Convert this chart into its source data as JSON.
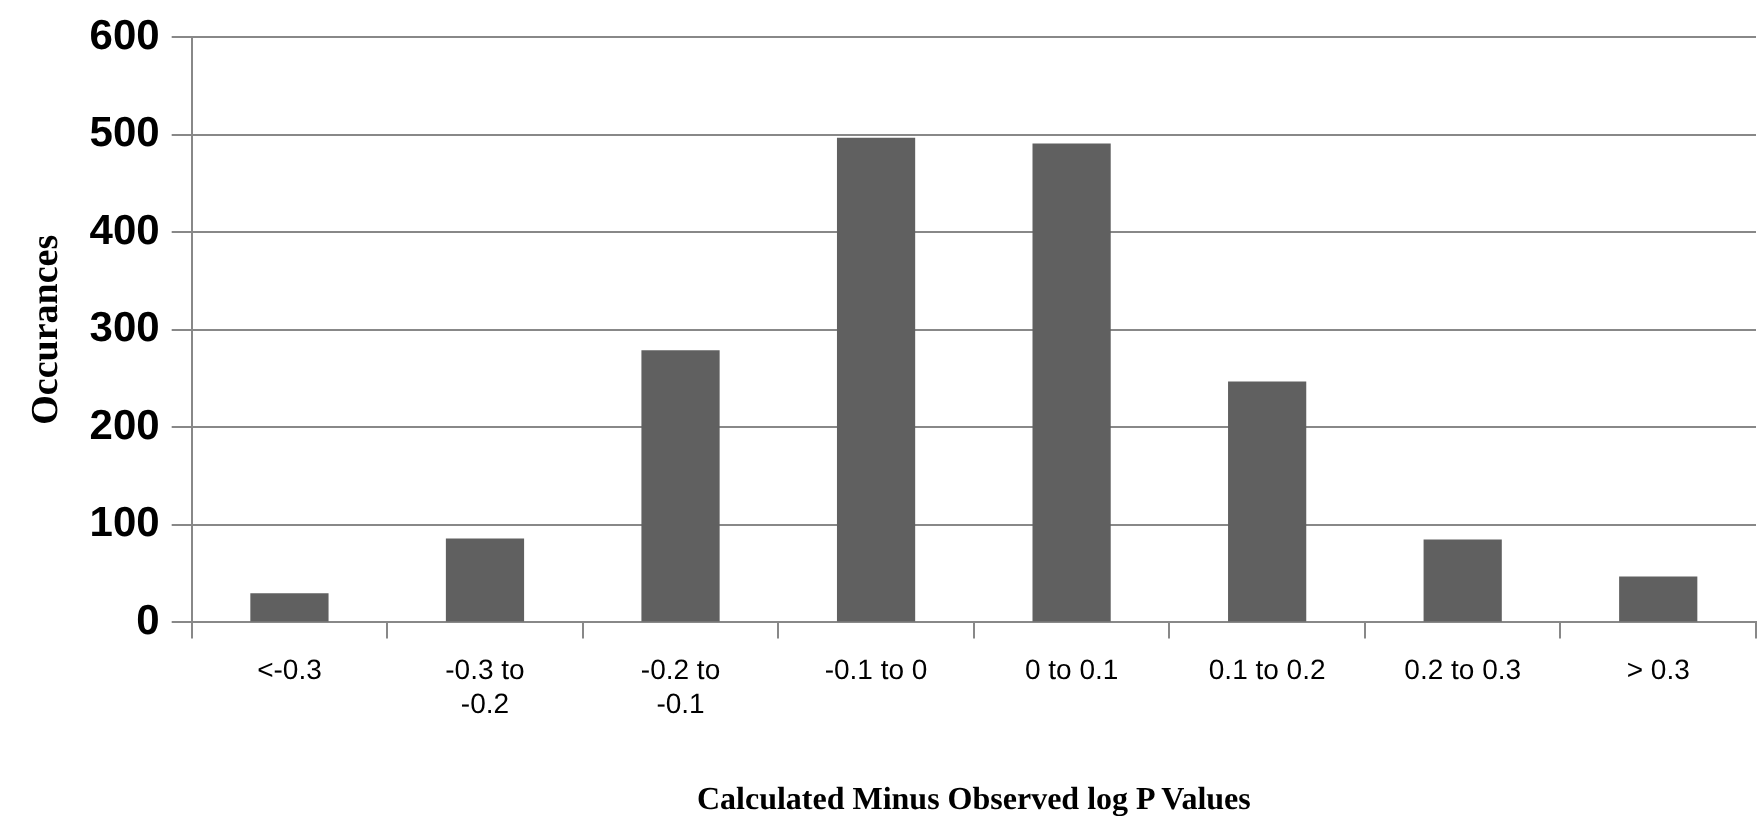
{
  "chart_data": {
    "type": "bar",
    "xlabel": "Calculated Minus Observed log P Values",
    "ylabel": "Occurances",
    "categories": [
      "<-0.3",
      "-0.3 to -0.2",
      "-0.2 to -0.1",
      "-0.1 to 0",
      "0 to 0.1",
      "0.1 to 0.2",
      "0.2 to 0.3",
      "> 0.3"
    ],
    "values": [
      30,
      86,
      279,
      497,
      491,
      247,
      85,
      47
    ],
    "color": "#606060",
    "ylim": [
      0,
      600
    ],
    "yticks": [
      0,
      100,
      200,
      300,
      400,
      500,
      600
    ],
    "grid": "y"
  }
}
